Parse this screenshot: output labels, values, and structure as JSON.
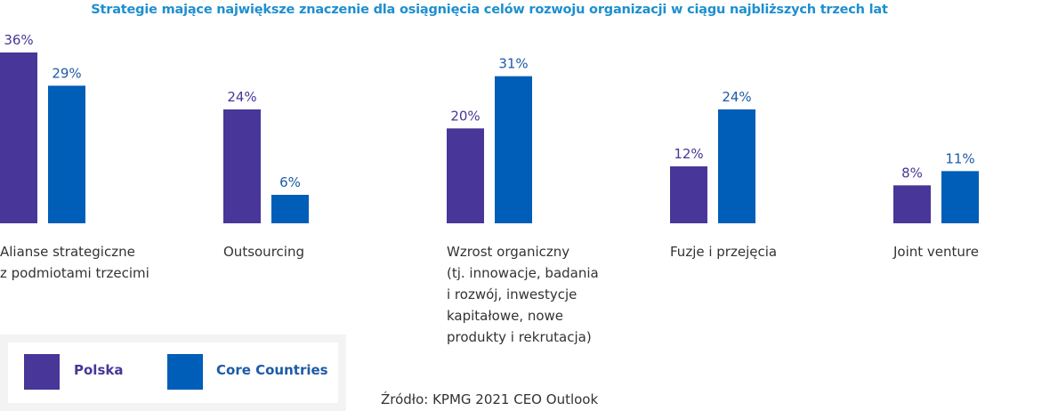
{
  "chart_data": {
    "type": "bar",
    "title": "Strategie mające największe znaczenie dla osiągnięcia celów rozwoju organizacji w ciągu najbliższych trzech lat",
    "categories": [
      "Alianse strategiczne\nz podmiotami trzecimi",
      "Outsourcing",
      "Wzrost organiczny\n(tj. innowacje, badania\ni rozwój, inwestycje\nkapitałowe, nowe\nprodukty i rekrutacja)",
      "Fuzje i przejęcia",
      "Joint venture"
    ],
    "series": [
      {
        "name": "Polska",
        "color": "#483698",
        "values": [
          36,
          24,
          20,
          12,
          8
        ],
        "labels": [
          "36%",
          "24%",
          "20%",
          "12%",
          "8%"
        ]
      },
      {
        "name": "Core Countries",
        "color": "#005eb8",
        "values": [
          29,
          6,
          31,
          24,
          11
        ],
        "labels": [
          "29%",
          "6%",
          "31%",
          "24%",
          "11%"
        ]
      }
    ],
    "unit": "%",
    "xlabel": "",
    "ylabel": "",
    "ylim": [
      0,
      36
    ],
    "grid": false,
    "legend_position": "bottom-left"
  },
  "legend": {
    "items": [
      {
        "label": "Polska",
        "color": "#483698"
      },
      {
        "label": "Core Countries",
        "color": "#005eb8"
      }
    ]
  },
  "colors": {
    "title": "#1e8fcf",
    "polska_label": "#483698",
    "core_label": "#1f5aa6"
  },
  "source": "Źródło: KPMG 2021 CEO Outlook"
}
